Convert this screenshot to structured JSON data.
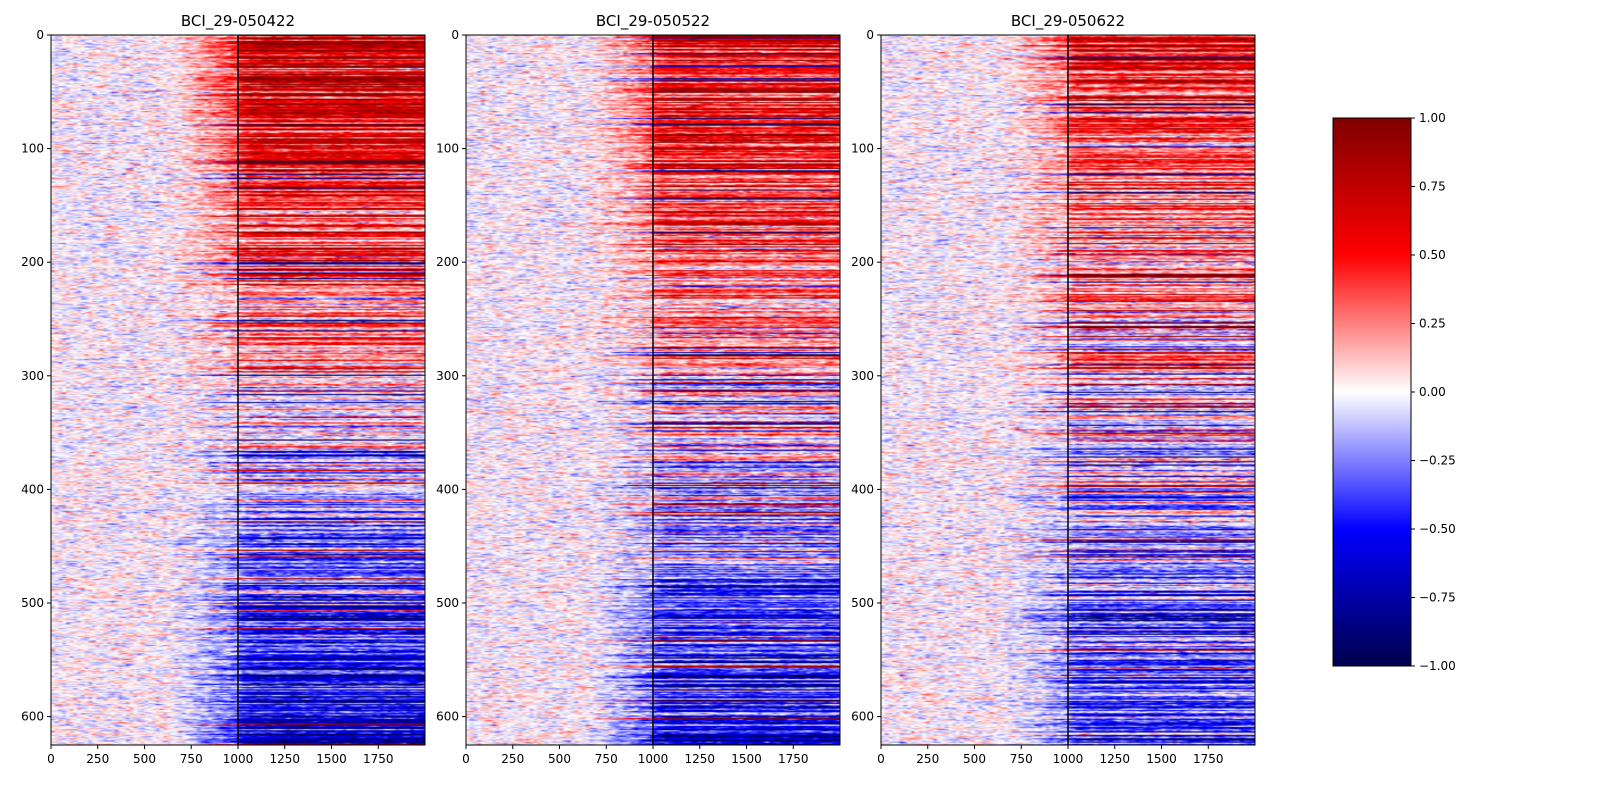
{
  "chart_data": {
    "type": "heatmap",
    "colormap": "seismic",
    "panels": [
      {
        "title": "BCI_29-050422",
        "x_range": [
          0,
          2000
        ],
        "y_range": [
          0,
          625
        ],
        "x_ticks": [
          0,
          250,
          500,
          750,
          1000,
          1250,
          1500,
          1750
        ],
        "y_ticks": [
          0,
          100,
          200,
          300,
          400,
          500,
          600
        ],
        "vertical_line_x": 1000,
        "pattern": "strong positive rows at top (sorted), transitioning to negative rows at bottom after x=1000"
      },
      {
        "title": "BCI_29-050522",
        "x_range": [
          0,
          2000
        ],
        "y_range": [
          0,
          625
        ],
        "x_ticks": [
          0,
          250,
          500,
          750,
          1000,
          1250,
          1500,
          1750
        ],
        "y_ticks": [
          0,
          100,
          200,
          300,
          400,
          500,
          600
        ],
        "vertical_line_x": 1000,
        "pattern": "positive rows at top, mixed middle, negative rows at bottom after x=1000"
      },
      {
        "title": "BCI_29-050622",
        "x_range": [
          0,
          2000
        ],
        "y_range": [
          0,
          625
        ],
        "x_ticks": [
          0,
          250,
          500,
          750,
          1000,
          1250,
          1500,
          1750
        ],
        "y_ticks": [
          0,
          100,
          200,
          300,
          400,
          500,
          600
        ],
        "vertical_line_x": 1000,
        "pattern": "positive rows at top, negative rows at bottom after x=1000, weaker overall"
      }
    ],
    "colorbar": {
      "range": [
        -1.0,
        1.0
      ],
      "ticks": [
        1.0,
        0.75,
        0.5,
        0.25,
        0.0,
        -0.25,
        -0.5,
        -0.75,
        -1.0
      ],
      "tick_labels": [
        "1.00",
        "0.75",
        "0.50",
        "0.25",
        "0.00",
        "−0.25",
        "−0.50",
        "−0.75",
        "−1.00"
      ]
    }
  }
}
